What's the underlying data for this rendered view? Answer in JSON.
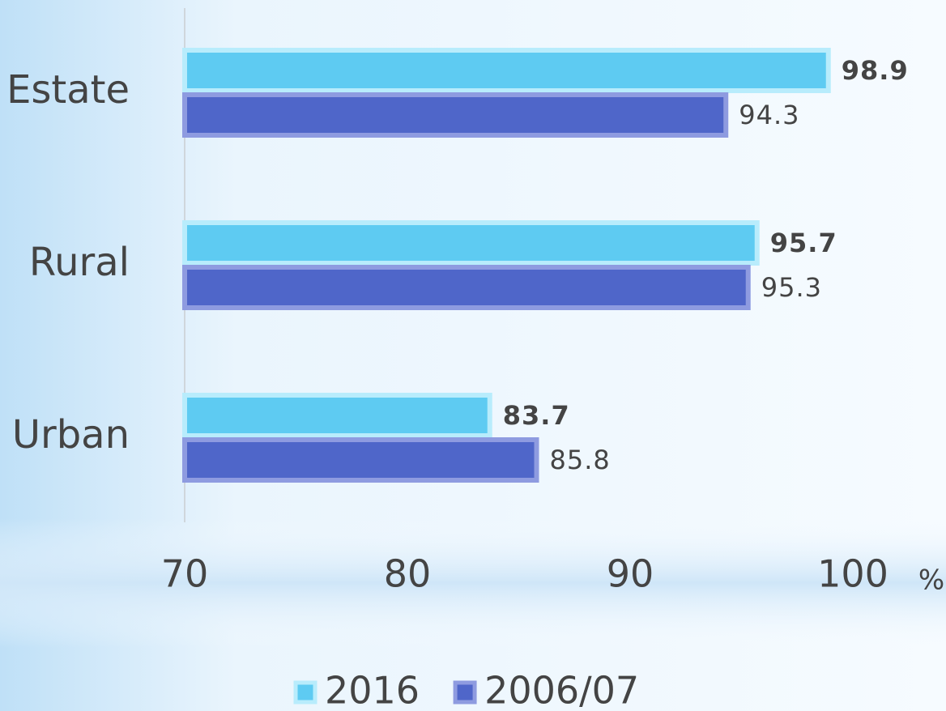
{
  "chart_data": {
    "type": "bar",
    "orientation": "horizontal",
    "categories": [
      "Estate",
      "Rural",
      "Urban"
    ],
    "series": [
      {
        "name": "2016",
        "color": "#5ecbf2",
        "values": [
          98.9,
          95.7,
          83.7
        ]
      },
      {
        "name": "2006/07",
        "color": "#4f66c9",
        "values": [
          94.3,
          95.3,
          85.8
        ]
      }
    ],
    "xlim": [
      70,
      100
    ],
    "xticks": [
      70,
      80,
      90,
      100
    ],
    "x_label": "%",
    "grid": false,
    "legend": "bottom"
  }
}
